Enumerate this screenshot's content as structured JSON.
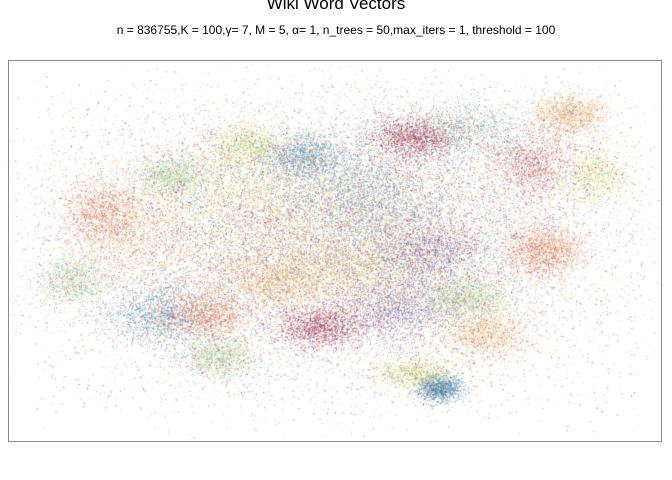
{
  "chart_data": {
    "type": "scatter",
    "title": "Wiki Word Vectors",
    "subtitle": "n = 836755,K = 100,γ= 7, M = 5, α= 1, n_trees = 50,max_iters = 1, threshold = 100",
    "xlabel": "",
    "ylabel": "",
    "axes_visible": false,
    "grid": false,
    "legend": "none",
    "palette": [
      "#9e0142",
      "#d53e4f",
      "#f46d43",
      "#fdae61",
      "#fee08b",
      "#e6f598",
      "#abdda4",
      "#66c2a5",
      "#3288bd",
      "#5e4fa2"
    ],
    "n_points": 836755,
    "note_points": "dense point cloud of word-vector embeddings; individual values not legible"
  }
}
